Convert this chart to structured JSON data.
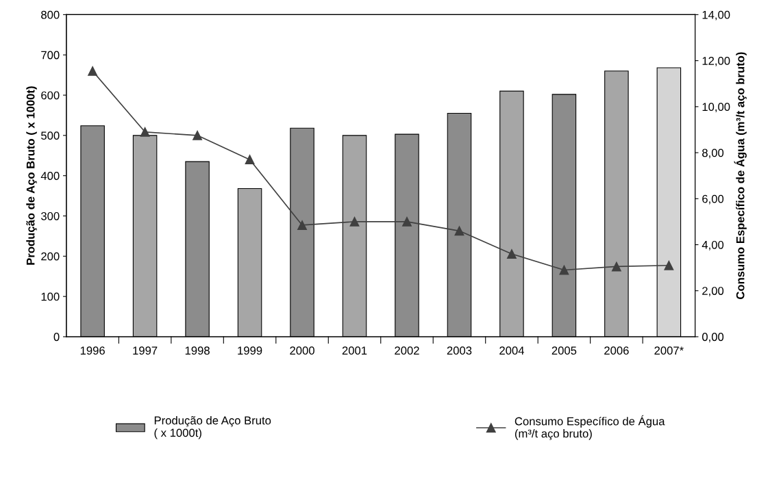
{
  "chart_data": {
    "type": "bar",
    "categories": [
      "1996",
      "1997",
      "1998",
      "1999",
      "2000",
      "2001",
      "2002",
      "2003",
      "2004",
      "2005",
      "2006",
      "2007*"
    ],
    "ylabel": "Produção de Aço Bruto ( x 1000t)",
    "y2label": "Consumo Específico de Água (m³/t aço bruto)",
    "ylim": [
      0,
      800
    ],
    "yticks": [
      0,
      100,
      200,
      300,
      400,
      500,
      600,
      700,
      800
    ],
    "y2lim": [
      0,
      14
    ],
    "y2ticks": [
      {
        "value": 0,
        "label": "0,00"
      },
      {
        "value": 2,
        "label": "2,00"
      },
      {
        "value": 4,
        "label": "4,00"
      },
      {
        "value": 6,
        "label": "6,00"
      },
      {
        "value": 8,
        "label": "8,00"
      },
      {
        "value": 10,
        "label": "10,00"
      },
      {
        "value": 12,
        "label": "12,00"
      },
      {
        "value": 14,
        "label": "14,00"
      }
    ],
    "legend": "bottom",
    "grid": false,
    "series": [
      {
        "name": "Produção de Aço Bruto\n( x 1000t)",
        "color": "#8c8c8c",
        "colors": [
          "#8c8c8c",
          "#a6a6a6",
          "#8c8c8c",
          "#a6a6a6",
          "#8c8c8c",
          "#a6a6a6",
          "#8c8c8c",
          "#8c8c8c",
          "#a6a6a6",
          "#8c8c8c",
          "#a6a6a6",
          "#d4d4d4"
        ],
        "values": [
          524,
          500,
          435,
          368,
          518,
          500,
          503,
          555,
          610,
          602,
          660,
          668
        ]
      },
      {
        "name": "Consumo Específico de Água\n(m³/t aço bruto)",
        "type": "line",
        "axis": "y2",
        "color": "#404040",
        "marker": "triangle",
        "values": [
          11.55,
          8.9,
          8.75,
          7.7,
          4.85,
          5.0,
          5.0,
          4.6,
          3.6,
          2.9,
          3.05,
          3.1
        ]
      }
    ]
  }
}
